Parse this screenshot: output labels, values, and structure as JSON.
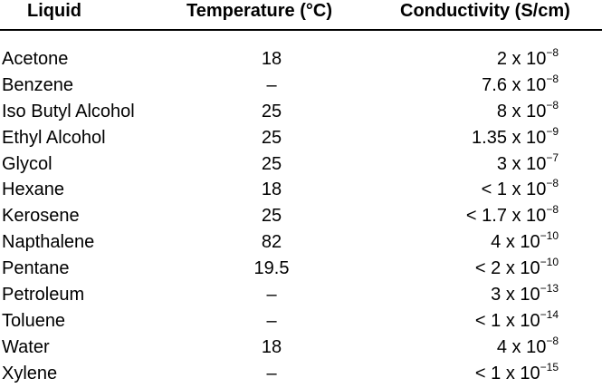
{
  "headers": {
    "liquid": "Liquid",
    "temperature": "Temperature (°C)",
    "conductivity": "Conductivity (S/cm)"
  },
  "rows": [
    {
      "liquid": "Acetone",
      "temperature": "18",
      "cond_base": "2 x 10",
      "cond_exp": "−8"
    },
    {
      "liquid": "Benzene",
      "temperature": "–",
      "cond_base": "7.6 x 10",
      "cond_exp": "−8"
    },
    {
      "liquid": "Iso Butyl Alcohol",
      "temperature": "25",
      "cond_base": "8 x 10",
      "cond_exp": "−8"
    },
    {
      "liquid": "Ethyl Alcohol",
      "temperature": "25",
      "cond_base": "1.35 x 10",
      "cond_exp": "−9"
    },
    {
      "liquid": "Glycol",
      "temperature": "25",
      "cond_base": "3 x 10",
      "cond_exp": "−7"
    },
    {
      "liquid": "Hexane",
      "temperature": "18",
      "cond_base": "< 1 x 10",
      "cond_exp": "−8"
    },
    {
      "liquid": "Kerosene",
      "temperature": "25",
      "cond_base": "< 1.7 x 10",
      "cond_exp": "−8"
    },
    {
      "liquid": "Napthalene",
      "temperature": "82",
      "cond_base": "4 x 10",
      "cond_exp": "−10"
    },
    {
      "liquid": "Pentane",
      "temperature": "19.5",
      "cond_base": "< 2 x 10",
      "cond_exp": "−10"
    },
    {
      "liquid": "Petroleum",
      "temperature": "–",
      "cond_base": "3 x 10",
      "cond_exp": "−13"
    },
    {
      "liquid": "Toluene",
      "temperature": "–",
      "cond_base": "< 1 x 10",
      "cond_exp": "−14"
    },
    {
      "liquid": "Water",
      "temperature": "18",
      "cond_base": "4 x 10",
      "cond_exp": "−8"
    },
    {
      "liquid": "Xylene",
      "temperature": "–",
      "cond_base": "< 1 x 10",
      "cond_exp": "−15"
    }
  ]
}
